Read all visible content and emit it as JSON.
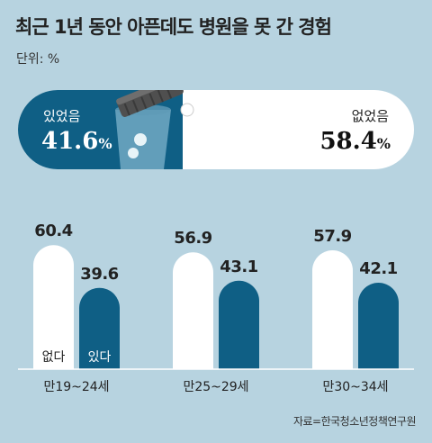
{
  "title": "최근 1년 동안 아픈데도 병원을 못 간 경험",
  "unit": "단위: %",
  "source": "자료=한국청소년정책연구원",
  "colors": {
    "background": "#b7d3e0",
    "had": "#0f5f85",
    "none": "#ffffff"
  },
  "icon": "pill-bottle-icon",
  "chart_data": [
    {
      "type": "bar",
      "title": "",
      "categories": [
        "있었음",
        "없었음"
      ],
      "values": [
        41.6,
        58.4
      ],
      "labels": {
        "had": "있었음",
        "none": "없었음"
      },
      "value_text": {
        "had": "41.6",
        "none": "58.4",
        "pct": "%"
      }
    },
    {
      "type": "bar",
      "categories": [
        "만19~24세",
        "만25~29세",
        "만30~34세"
      ],
      "series": [
        {
          "name": "없다",
          "values": [
            60.4,
            56.9,
            57.9
          ]
        },
        {
          "name": "있다",
          "values": [
            39.6,
            43.1,
            42.1
          ]
        }
      ],
      "value_labels": {
        "none": [
          "60.4",
          "56.9",
          "57.9"
        ],
        "had": [
          "39.6",
          "43.1",
          "42.1"
        ]
      },
      "ylim": [
        0,
        70
      ]
    }
  ]
}
